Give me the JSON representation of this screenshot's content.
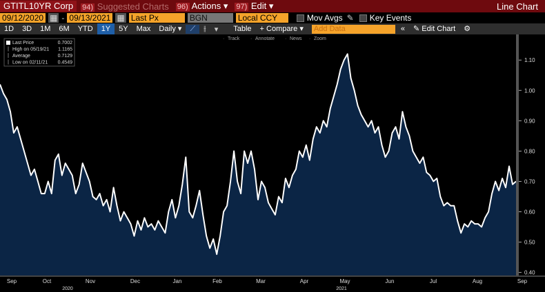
{
  "header": {
    "security": "GTITL10YR Corp",
    "menus": [
      {
        "num": "94)",
        "label": "Suggested Charts"
      },
      {
        "num": "96)",
        "label": "Actions"
      },
      {
        "num": "97)",
        "label": "Edit"
      }
    ],
    "chart_type": "Line Chart"
  },
  "settings": {
    "start_date": "09/12/2020",
    "end_date": "09/13/2021",
    "field": "Last Px",
    "source": "BGN",
    "currency": "Local CCY",
    "options": [
      "Mov Avgs",
      "Key Events"
    ]
  },
  "toolbar": {
    "periods": [
      "1D",
      "3D",
      "1M",
      "6M",
      "YTD",
      "1Y",
      "5Y",
      "Max"
    ],
    "active_period": 5,
    "frequency": "Daily",
    "table": "Table",
    "compare": "+ Compare",
    "add_data": "Add Data",
    "edit_chart": "Edit Chart"
  },
  "chart_tools": [
    "Track",
    "Annotate",
    "News",
    "Zoom"
  ],
  "legend": [
    {
      "label": "Last Price",
      "value": 0.7002
    },
    {
      "label": "High on 05/19/21",
      "value": 1.1165
    },
    {
      "label": "Average",
      "value": 0.7129
    },
    {
      "label": "Low on 02/11/21",
      "value": 0.4549
    }
  ],
  "chart_data": {
    "type": "line",
    "x_labels": [
      "Sep",
      "Oct",
      "Nov",
      "Dec",
      "Jan",
      "Feb",
      "Mar",
      "Apr",
      "May",
      "Jun",
      "Jul",
      "Aug",
      "Sep"
    ],
    "year_labels": [
      "2020",
      "2021"
    ],
    "series": [
      {
        "color": "#ffffff",
        "fill": "#0b2545",
        "values": [
          1.02,
          0.99,
          0.97,
          0.93,
          0.86,
          0.88,
          0.84,
          0.8,
          0.76,
          0.72,
          0.74,
          0.7,
          0.66,
          0.66,
          0.7,
          0.66,
          0.77,
          0.79,
          0.72,
          0.76,
          0.74,
          0.72,
          0.66,
          0.69,
          0.76,
          0.73,
          0.7,
          0.65,
          0.64,
          0.66,
          0.62,
          0.64,
          0.6,
          0.68,
          0.62,
          0.57,
          0.6,
          0.58,
          0.56,
          0.52,
          0.57,
          0.54,
          0.58,
          0.55,
          0.56,
          0.54,
          0.57,
          0.55,
          0.53,
          0.6,
          0.64,
          0.58,
          0.62,
          0.69,
          0.78,
          0.6,
          0.58,
          0.62,
          0.67,
          0.59,
          0.52,
          0.48,
          0.51,
          0.46,
          0.52,
          0.6,
          0.62,
          0.7,
          0.8,
          0.7,
          0.66,
          0.8,
          0.76,
          0.8,
          0.74,
          0.64,
          0.7,
          0.68,
          0.63,
          0.61,
          0.59,
          0.65,
          0.63,
          0.71,
          0.68,
          0.72,
          0.74,
          0.8,
          0.78,
          0.82,
          0.77,
          0.84,
          0.88,
          0.86,
          0.9,
          0.88,
          0.94,
          0.98,
          1.02,
          1.07,
          1.1,
          1.12,
          1.04,
          1.0,
          0.95,
          0.92,
          0.9,
          0.88,
          0.9,
          0.86,
          0.88,
          0.82,
          0.78,
          0.8,
          0.86,
          0.88,
          0.84,
          0.93,
          0.88,
          0.85,
          0.8,
          0.78,
          0.76,
          0.78,
          0.73,
          0.72,
          0.7,
          0.71,
          0.65,
          0.62,
          0.63,
          0.62,
          0.62,
          0.57,
          0.53,
          0.56,
          0.55,
          0.57,
          0.56,
          0.56,
          0.55,
          0.58,
          0.6,
          0.66,
          0.7,
          0.67,
          0.71,
          0.68,
          0.75,
          0.69,
          0.7
        ]
      }
    ],
    "ylim": [
      0.39,
      1.18
    ],
    "yticks": [
      {
        "value": 0.4,
        "label": "0.40"
      },
      {
        "value": 0.5,
        "label": "0.50"
      },
      {
        "value": 0.6,
        "label": "0.60"
      },
      {
        "value": 0.7,
        "label": "0.70"
      },
      {
        "value": 0.8,
        "label": "0.80"
      },
      {
        "value": 0.9,
        "label": "0.90"
      },
      {
        "value": 1.0,
        "label": "1.00"
      },
      {
        "value": 1.1,
        "label": "1.10"
      }
    ]
  }
}
